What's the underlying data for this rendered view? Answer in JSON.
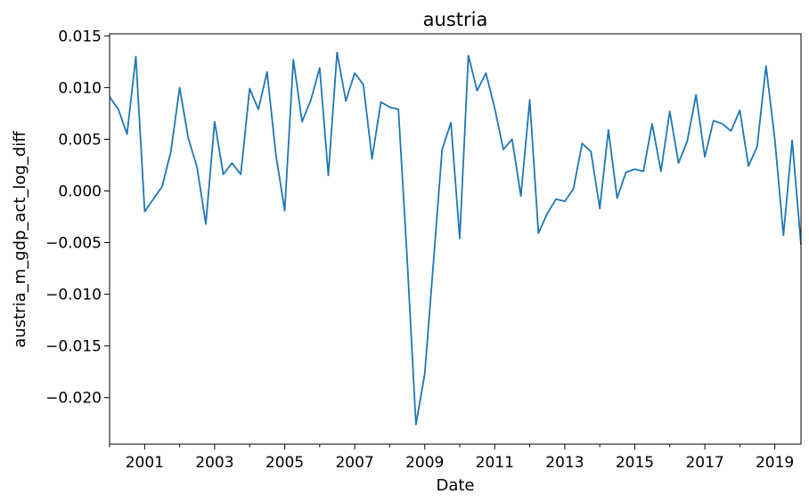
{
  "chart_data": {
    "type": "line",
    "title": "austria",
    "xlabel": "Date",
    "ylabel": "austria_m_gdp_act_log_diff",
    "xlim": [
      "2000-01-01",
      "2019-10-01"
    ],
    "ylim": [
      -0.0245,
      0.0152
    ],
    "xticks": [
      "2001",
      "2003",
      "2005",
      "2007",
      "2009",
      "2011",
      "2013",
      "2015",
      "2017",
      "2019"
    ],
    "yticks": [
      "0.015",
      "0.010",
      "0.005",
      "0.000",
      "−0.005",
      "−0.010",
      "−0.015",
      "−0.020"
    ],
    "grid": false,
    "color": "#1f77b4",
    "series": [
      {
        "x": [
          "2000-01-01",
          "2000-04-01",
          "2000-07-01",
          "2000-10-01",
          "2001-01-01",
          "2001-04-01",
          "2001-07-01",
          "2001-10-01",
          "2002-01-01",
          "2002-04-01",
          "2002-07-01",
          "2002-10-01",
          "2003-01-01",
          "2003-04-01",
          "2003-07-01",
          "2003-10-01",
          "2004-01-01",
          "2004-04-01",
          "2004-07-01",
          "2004-10-01",
          "2005-01-01",
          "2005-04-01",
          "2005-07-01",
          "2005-10-01",
          "2006-01-01",
          "2006-04-01",
          "2006-07-01",
          "2006-10-01",
          "2007-01-01",
          "2007-04-01",
          "2007-07-01",
          "2007-10-01",
          "2008-01-01",
          "2008-04-01",
          "2008-07-01",
          "2008-10-01",
          "2009-01-01",
          "2009-04-01",
          "2009-07-01",
          "2009-10-01",
          "2010-01-01",
          "2010-04-01",
          "2010-07-01",
          "2010-10-01",
          "2011-01-01",
          "2011-04-01",
          "2011-07-01",
          "2011-10-01",
          "2012-01-01",
          "2012-04-01",
          "2012-07-01",
          "2012-10-01",
          "2013-01-01",
          "2013-04-01",
          "2013-07-01",
          "2013-10-01",
          "2014-01-01",
          "2014-04-01",
          "2014-07-01",
          "2014-10-01",
          "2015-01-01",
          "2015-04-01",
          "2015-07-01",
          "2015-10-01",
          "2016-01-01",
          "2016-04-01",
          "2016-07-01",
          "2016-10-01",
          "2017-01-01",
          "2017-04-01",
          "2017-07-01",
          "2017-10-01",
          "2018-01-01",
          "2018-04-01",
          "2018-07-01",
          "2018-10-01",
          "2019-01-01",
          "2019-04-01",
          "2019-07-01",
          "2019-10-01"
        ],
        "y": [
          0.0091,
          0.0079,
          0.0055,
          0.013,
          -0.002,
          -0.0008,
          0.0004,
          0.0038,
          0.01,
          0.0051,
          0.0023,
          -0.0032,
          0.0067,
          0.0016,
          0.0027,
          0.0016,
          0.0099,
          0.0079,
          0.0115,
          0.0035,
          -0.0019,
          0.0127,
          0.0067,
          0.0088,
          0.0119,
          0.0015,
          0.0134,
          0.0087,
          0.0114,
          0.0103,
          0.0031,
          0.0086,
          0.0081,
          0.0079,
          -0.0065,
          -0.0226,
          -0.0177,
          -0.007,
          0.004,
          0.0066,
          -0.0046,
          0.0131,
          0.0097,
          0.0114,
          0.008,
          0.004,
          0.005,
          -0.0005,
          0.0088,
          -0.0041,
          -0.0022,
          -0.0008,
          -0.001,
          0.0002,
          0.0046,
          0.0038,
          -0.0017,
          0.0059,
          -0.0007,
          0.0018,
          0.0021,
          0.0019,
          0.0065,
          0.0019,
          0.0077,
          0.0027,
          0.0048,
          0.0093,
          0.0033,
          0.0068,
          0.0065,
          0.0058,
          0.0078,
          0.0024,
          0.0043,
          0.0121,
          0.005,
          -0.0043,
          0.0049,
          -0.0052
        ]
      }
    ]
  }
}
